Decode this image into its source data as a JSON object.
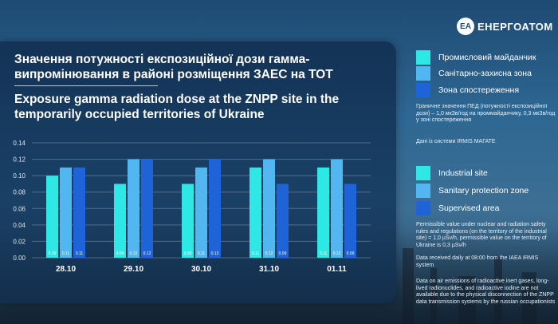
{
  "brand": {
    "logo_text": "ЕНЕРГОАТОМ",
    "logo_mark": "EA"
  },
  "titles": {
    "ua": "Значення потужності експозиційної дози гамма-випромінювання в районі розміщення ЗАЕС на ТОТ",
    "en": "Exposure gamma radiation dose at the ZNPP site in the temporarily occupied territories of Ukraine"
  },
  "legend_ua": [
    {
      "label": "Промисловий майданчик",
      "color": "#2ee8e6"
    },
    {
      "label": "Санітарно-захисна зона",
      "color": "#52b6f0"
    },
    {
      "label": "Зона спостереження",
      "color": "#1f63d8"
    }
  ],
  "legend_en": [
    {
      "label": "Industrial site",
      "color": "#2ee8e6"
    },
    {
      "label": "Sanitary protection zone",
      "color": "#52b6f0"
    },
    {
      "label": "Supervised area",
      "color": "#1f63d8"
    }
  ],
  "notes": {
    "ua_limits": "Граничне значення ПЕД (потужності експозиційної дози) – 1,0 мкЗв/год на проммайданчику, 0,3 мкЗв/год у зоні спостереження",
    "ua_source": "Дані із системи IRMIS МАГАТЕ",
    "en_limits": "Permissible value under nuclear and radiation safety rules and regulations (on the territory of the industrial site) = 1,0 µSv/h, permissible value on the territory of Ukraine is 0,3 µSv/h",
    "en_source": "Data received daily at 08:00 from the IAEA IRMIS system",
    "en_emissions": "Data on air emissions of radioactive inert gases, long-lived radionuclides, and radioactive iodine are not available due to the physical disconnection of the ZNPP data transmission systems by the russian occupationists"
  },
  "chart_data": {
    "type": "bar",
    "categories": [
      "28.10",
      "29.10",
      "30.10",
      "31.10",
      "01.11"
    ],
    "series": [
      {
        "name": "Промисловий майданчик",
        "values": [
          0.1,
          0.09,
          0.09,
          0.11,
          0.11
        ],
        "labels": [
          "0.10",
          "0.09",
          "0.09",
          "0.11",
          "0.11"
        ]
      },
      {
        "name": "Санітарно-захисна зона",
        "values": [
          0.11,
          0.12,
          0.11,
          0.12,
          0.12
        ],
        "labels": [
          "0.11",
          "0.12",
          "0.11",
          "0.12",
          "0.12"
        ]
      },
      {
        "name": "Зона спостереження",
        "values": [
          0.11,
          0.12,
          0.12,
          0.09,
          0.09
        ],
        "labels": [
          "0.11",
          "0.12",
          "0.12",
          "0.09",
          "0.09"
        ]
      }
    ],
    "ylim": [
      0,
      0.14
    ],
    "yticks": [
      "0.00",
      "0.02",
      "0.04",
      "0.06",
      "0.08",
      "0.10",
      "0.12",
      "0.14"
    ],
    "grid": true,
    "legend": "right"
  }
}
